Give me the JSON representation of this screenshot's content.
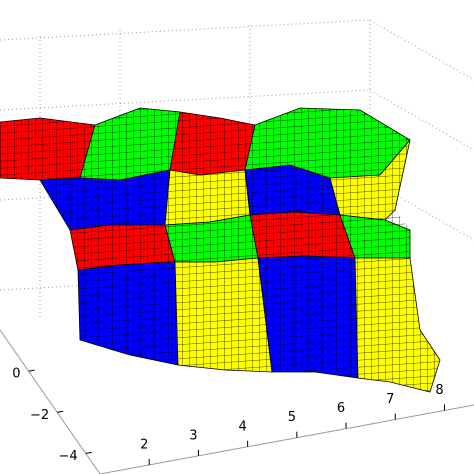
{
  "chart_data": {
    "type": "surface",
    "xticks": [
      2,
      3,
      4,
      5,
      6,
      7,
      8
    ],
    "yticks": [
      {
        "value": 0,
        "label": "0"
      },
      {
        "value": -2,
        "label": "−2"
      },
      {
        "value": -4,
        "label": "−4"
      }
    ],
    "grid": true
  }
}
